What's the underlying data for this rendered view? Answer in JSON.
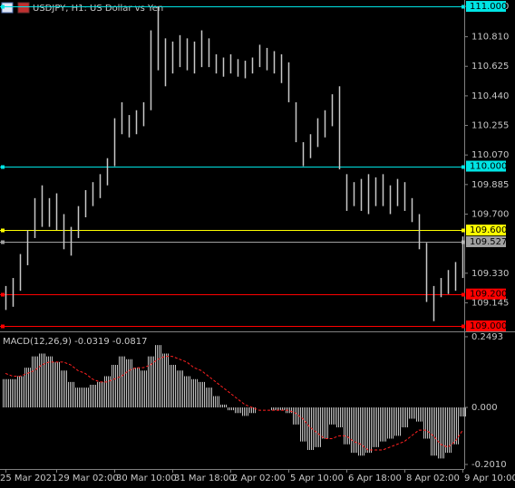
{
  "chart_data": [
    {
      "type": "range",
      "title": "USDJPY, H1:  US Dollar vs Yen",
      "color": "#c8c8c8",
      "ylim": [
        108.966,
        111.04
      ],
      "yticks": [
        {
          "value": 111,
          "label": "111.000"
        },
        {
          "value": 110.81,
          "label": "110.810"
        },
        {
          "value": 110.625,
          "label": "110.625"
        },
        {
          "value": 110.44,
          "label": "110.440"
        },
        {
          "value": 110.255,
          "label": "110.255"
        },
        {
          "value": 110.07,
          "label": "110.070"
        },
        {
          "value": 109.885,
          "label": "109.885"
        },
        {
          "value": 109.7,
          "label": "109.700"
        },
        {
          "value": 109.33,
          "label": "109.330"
        },
        {
          "value": 109.145,
          "label": "109.145"
        }
      ],
      "high": [
        109.25,
        109.3,
        109.45,
        109.6,
        109.8,
        109.88,
        109.8,
        109.83,
        109.7,
        109.62,
        109.75,
        109.85,
        109.9,
        109.95,
        110.05,
        110.3,
        110.4,
        110.32,
        110.35,
        110.4,
        110.85,
        111.0,
        110.8,
        110.78,
        110.82,
        110.8,
        110.78,
        110.85,
        110.8,
        110.7,
        110.68,
        110.7,
        110.67,
        110.66,
        110.68,
        110.76,
        110.74,
        110.72,
        110.7,
        110.65,
        110.4,
        110.15,
        110.2,
        110.3,
        110.35,
        110.45,
        110.5,
        109.95,
        109.9,
        109.92,
        109.95,
        109.93,
        109.95,
        109.88,
        109.92,
        109.9,
        109.8,
        109.7,
        109.52,
        109.25,
        109.3,
        109.35,
        109.4,
        109.56
      ],
      "low": [
        109.1,
        109.12,
        109.22,
        109.38,
        109.55,
        109.62,
        109.62,
        109.6,
        109.48,
        109.44,
        109.55,
        109.68,
        109.75,
        109.8,
        109.88,
        110.0,
        110.2,
        110.18,
        110.2,
        110.25,
        110.35,
        110.6,
        110.5,
        110.58,
        110.62,
        110.6,
        110.58,
        110.62,
        110.62,
        110.58,
        110.56,
        110.58,
        110.56,
        110.55,
        110.58,
        110.62,
        110.6,
        110.58,
        110.52,
        110.4,
        110.15,
        110.0,
        110.05,
        110.12,
        110.18,
        110.25,
        109.98,
        109.72,
        109.75,
        109.72,
        109.7,
        109.75,
        109.75,
        109.7,
        109.75,
        109.72,
        109.65,
        109.48,
        109.15,
        109.03,
        109.18,
        109.2,
        109.22,
        109.3
      ],
      "levels": [
        {
          "value": 111,
          "label": "111.000",
          "color": "#00e5e5",
          "text_color": "#000000"
        },
        {
          "value": 110,
          "label": "110.000",
          "color": "#00e5e5",
          "text_color": "#000000"
        },
        {
          "value": 109.6,
          "label": "109.600",
          "color": "#ffff00",
          "text_color": "#000000"
        },
        {
          "value": 109.527,
          "label": "109.527",
          "color": "#a0a0a0",
          "text_color": "#000000"
        },
        {
          "value": 109.2,
          "label": "109.200",
          "color": "#ff0000",
          "text_color": "#000000"
        },
        {
          "value": 109,
          "label": "109.000",
          "color": "#ff0000",
          "text_color": "#000000"
        }
      ]
    },
    {
      "type": "macd",
      "title": "MACD(12,26,9) -0.0319 -0.0817",
      "ylim": [
        -0.217,
        0.265
      ],
      "yticks": [
        0.2493,
        {
          "value": 0,
          "label": "0.000"
        },
        {
          "value": -0.201,
          "label": "-0.2010"
        }
      ],
      "categories": [
        "25 Mar 2021",
        null,
        null,
        null,
        null,
        null,
        null,
        "29 Mar 02:00",
        null,
        null,
        null,
        null,
        null,
        null,
        null,
        "30 Mar 10:00",
        null,
        null,
        null,
        null,
        null,
        null,
        null,
        "31 Mar 18:00",
        null,
        null,
        null,
        null,
        null,
        null,
        null,
        "2 Apr 02:00",
        null,
        null,
        null,
        null,
        null,
        null,
        null,
        "5 Apr 10:00",
        null,
        null,
        null,
        null,
        null,
        null,
        null,
        "6 Apr 18:00",
        null,
        null,
        null,
        null,
        null,
        null,
        null,
        "8 Apr 02:00",
        null,
        null,
        null,
        null,
        null,
        null,
        null,
        "9 Apr 10:00"
      ],
      "series": [
        {
          "name": "MACD",
          "color": "#c0c0c0",
          "values": [
            0.1,
            0.1,
            0.11,
            0.14,
            0.18,
            0.19,
            0.18,
            0.16,
            0.13,
            0.09,
            0.07,
            0.07,
            0.08,
            0.09,
            0.11,
            0.15,
            0.18,
            0.17,
            0.14,
            0.13,
            0.18,
            0.22,
            0.19,
            0.15,
            0.13,
            0.11,
            0.1,
            0.09,
            0.07,
            0.04,
            0.01,
            -0.01,
            -0.02,
            -0.03,
            -0.02,
            0.0,
            0.0,
            -0.01,
            -0.01,
            -0.02,
            -0.06,
            -0.12,
            -0.15,
            -0.14,
            -0.11,
            -0.06,
            -0.07,
            -0.13,
            -0.16,
            -0.17,
            -0.16,
            -0.14,
            -0.12,
            -0.11,
            -0.1,
            -0.07,
            -0.04,
            -0.05,
            -0.11,
            -0.17,
            -0.18,
            -0.16,
            -0.13,
            -0.0319
          ]
        },
        {
          "name": "Signal",
          "color": "#ff2020",
          "values": [
            0.12,
            0.11,
            0.11,
            0.12,
            0.13,
            0.15,
            0.16,
            0.16,
            0.16,
            0.15,
            0.13,
            0.12,
            0.1,
            0.09,
            0.09,
            0.1,
            0.11,
            0.13,
            0.14,
            0.14,
            0.15,
            0.17,
            0.18,
            0.18,
            0.17,
            0.16,
            0.14,
            0.13,
            0.11,
            0.09,
            0.07,
            0.05,
            0.03,
            0.01,
            0.0,
            -0.01,
            -0.01,
            -0.01,
            -0.01,
            -0.01,
            -0.02,
            -0.04,
            -0.07,
            -0.09,
            -0.11,
            -0.11,
            -0.1,
            -0.1,
            -0.12,
            -0.13,
            -0.15,
            -0.15,
            -0.15,
            -0.14,
            -0.13,
            -0.12,
            -0.1,
            -0.08,
            -0.08,
            -0.1,
            -0.13,
            -0.14,
            -0.12,
            -0.0817
          ]
        }
      ]
    }
  ]
}
